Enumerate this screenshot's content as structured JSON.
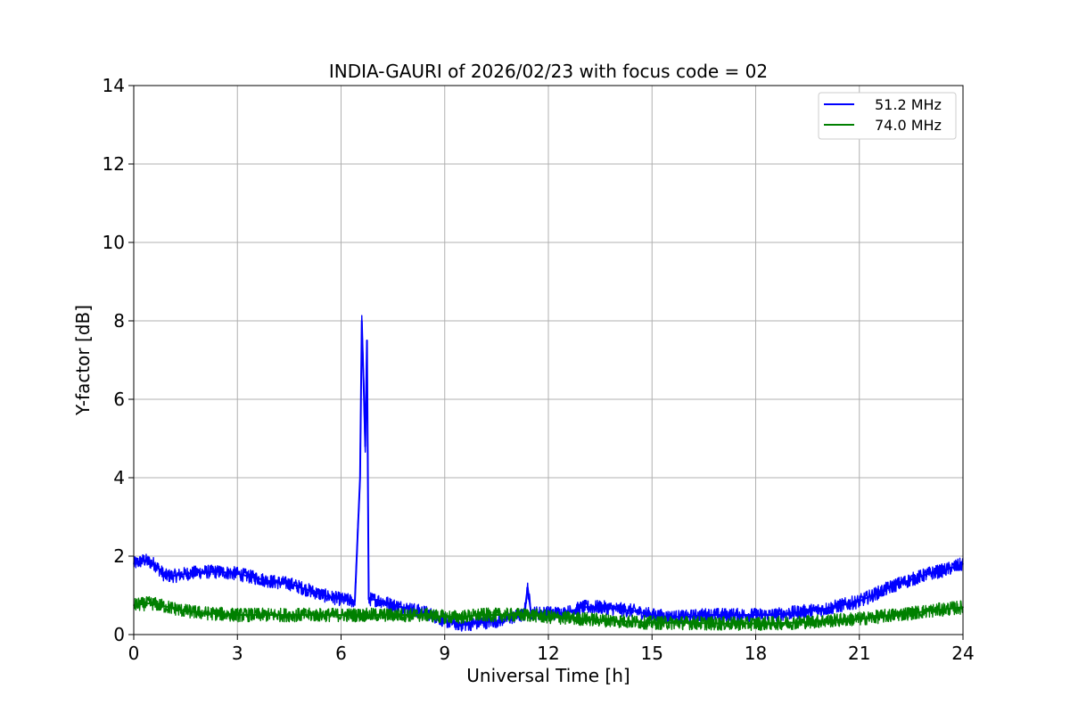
{
  "chart_data": {
    "type": "line",
    "title": "INDIA-GAURI of 2026/02/23 with focus code = 02",
    "xlabel": "Universal Time [h]",
    "ylabel": "Y-factor [dB]",
    "xlim": [
      0,
      24
    ],
    "ylim": [
      0,
      14
    ],
    "xticks": [
      0,
      3,
      6,
      9,
      12,
      15,
      18,
      21,
      24
    ],
    "yticks": [
      0,
      2,
      4,
      6,
      8,
      10,
      12,
      14
    ],
    "grid": true,
    "legend_position": "top-right",
    "series": [
      {
        "name": "51.2 MHz",
        "color": "#0000ff",
        "band_width": 0.35,
        "x": [
          0,
          0.3,
          0.6,
          0.9,
          1.2,
          1.5,
          2.0,
          2.5,
          3.0,
          3.5,
          4.0,
          4.5,
          5.0,
          5.5,
          6.0,
          6.4,
          6.55,
          6.6,
          6.65,
          6.7,
          6.75,
          6.8,
          6.9,
          7.2,
          7.5,
          8.0,
          8.5,
          9.0,
          9.5,
          10.0,
          10.5,
          11.0,
          11.3,
          11.4,
          11.5,
          12.0,
          12.5,
          13.0,
          13.5,
          14.0,
          14.5,
          15.0,
          15.5,
          16.0,
          16.5,
          17.0,
          17.5,
          18.0,
          18.5,
          19.0,
          19.5,
          20.0,
          20.5,
          21.0,
          21.5,
          22.0,
          22.5,
          23.0,
          23.5,
          24.0
        ],
        "y": [
          1.8,
          1.9,
          1.8,
          1.5,
          1.5,
          1.55,
          1.6,
          1.6,
          1.55,
          1.45,
          1.35,
          1.3,
          1.15,
          1.0,
          0.9,
          0.85,
          4.0,
          8.0,
          6.5,
          4.8,
          7.5,
          0.9,
          0.9,
          0.85,
          0.75,
          0.65,
          0.55,
          0.35,
          0.25,
          0.3,
          0.35,
          0.45,
          0.5,
          1.2,
          0.55,
          0.55,
          0.55,
          0.7,
          0.7,
          0.65,
          0.6,
          0.5,
          0.45,
          0.45,
          0.5,
          0.5,
          0.5,
          0.5,
          0.5,
          0.55,
          0.6,
          0.65,
          0.75,
          0.85,
          1.05,
          1.25,
          1.4,
          1.55,
          1.65,
          1.8
        ]
      },
      {
        "name": "74.0 MHz",
        "color": "#008000",
        "band_width": 0.35,
        "x": [
          0,
          0.5,
          1.0,
          1.5,
          2.0,
          3.0,
          4.0,
          5.0,
          6.0,
          7.0,
          7.5,
          8.0,
          8.5,
          9.0,
          9.5,
          10.0,
          10.5,
          11.0,
          11.5,
          12.0,
          13.0,
          14.0,
          15.0,
          16.0,
          17.0,
          18.0,
          19.0,
          20.0,
          21.0,
          22.0,
          23.0,
          24.0
        ],
        "y": [
          0.75,
          0.8,
          0.7,
          0.6,
          0.55,
          0.5,
          0.5,
          0.5,
          0.5,
          0.5,
          0.5,
          0.5,
          0.5,
          0.45,
          0.45,
          0.5,
          0.5,
          0.5,
          0.5,
          0.45,
          0.4,
          0.35,
          0.3,
          0.3,
          0.28,
          0.28,
          0.3,
          0.35,
          0.4,
          0.5,
          0.6,
          0.7
        ]
      }
    ]
  }
}
